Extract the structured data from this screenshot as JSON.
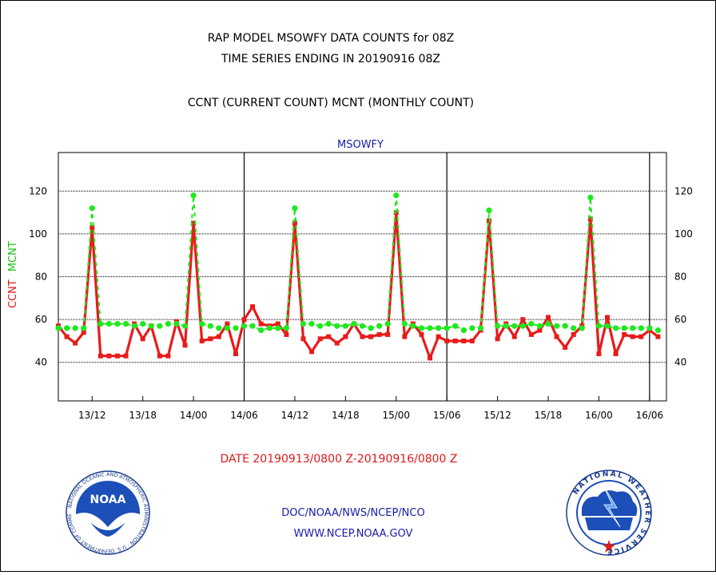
{
  "header": {
    "title_line1": "RAP MODEL MSOWFY DATA COUNTS for 08Z",
    "title_line2": "TIME SERIES ENDING IN 20190916 08Z",
    "subtitle": "CCNT (CURRENT COUNT) MCNT (MONTHLY COUNT)"
  },
  "footer": {
    "date_range": "DATE 20190913/0800 Z-20190916/0800 Z",
    "org_line": "DOC/NOAA/NWS/NCEP/NCO",
    "website": "WWW.NCEP.NOAA.GOV"
  },
  "logos": {
    "noaa_text": "NOAA",
    "noaa_ring": "NATIONAL OCEANIC AND ATMOSPHERIC ADMINISTRATION · U.S. DEPARTMENT OF COMMERCE",
    "nws_ring": "NATIONAL WEATHER SERVICE"
  },
  "colors": {
    "ccnt": "#e81b1b",
    "mcnt": "#1ee81e",
    "blue_text": "#1a1aaa",
    "red_text": "#e01818"
  },
  "chart_data": {
    "type": "line",
    "title": "MSOWFY",
    "ylabel_parts": [
      {
        "text": "CCNT",
        "color": "#e01818"
      },
      {
        "text": "MCNT",
        "color": "#18c018"
      }
    ],
    "x_start": 0,
    "x_end": 72,
    "x_step": 1,
    "xlim": [
      0,
      72
    ],
    "ylim": [
      22,
      138
    ],
    "y_ticks": [
      40,
      60,
      80,
      100,
      120
    ],
    "x_ticks": [
      {
        "pos": 4,
        "label": "13/12"
      },
      {
        "pos": 10,
        "label": "13/18"
      },
      {
        "pos": 16,
        "label": "14/00"
      },
      {
        "pos": 22,
        "label": "14/06"
      },
      {
        "pos": 28,
        "label": "14/12"
      },
      {
        "pos": 34,
        "label": "14/18"
      },
      {
        "pos": 40,
        "label": "15/00"
      },
      {
        "pos": 46,
        "label": "15/06"
      },
      {
        "pos": 52,
        "label": "15/12"
      },
      {
        "pos": 58,
        "label": "15/18"
      },
      {
        "pos": 64,
        "label": "16/00"
      },
      {
        "pos": 70,
        "label": "16/06"
      }
    ],
    "day_boundaries": [
      22,
      46,
      70
    ],
    "grid": true,
    "series": [
      {
        "name": "CCNT",
        "color": "#e81b1b",
        "values": [
          57,
          52,
          49,
          54,
          103,
          43,
          43,
          43,
          43,
          58,
          51,
          57,
          43,
          43,
          59,
          48,
          105,
          50,
          51,
          52,
          58,
          44,
          60,
          66,
          58,
          57,
          58,
          53,
          105,
          51,
          45,
          51,
          52,
          49,
          52,
          58,
          52,
          52,
          53,
          53,
          110,
          52,
          58,
          53,
          42,
          52,
          50,
          50,
          50,
          50,
          55,
          106,
          51,
          58,
          52,
          60,
          53,
          55,
          61,
          52,
          47,
          53,
          57,
          107,
          44,
          61,
          44,
          53,
          52,
          52,
          55,
          52
        ]
      },
      {
        "name": "MCNT",
        "color": "#1ee81e",
        "values": [
          56,
          56,
          56,
          56,
          112,
          58,
          58,
          58,
          58,
          57,
          58,
          57,
          57,
          58,
          58,
          57,
          118,
          58,
          57,
          56,
          56,
          56,
          57,
          57,
          55,
          56,
          56,
          56,
          112,
          58,
          58,
          57,
          58,
          57,
          57,
          58,
          57,
          56,
          57,
          58,
          118,
          58,
          57,
          56,
          56,
          56,
          56,
          57,
          55,
          56,
          56,
          111,
          57,
          57,
          57,
          57,
          58,
          57,
          58,
          57,
          57,
          56,
          56,
          117,
          57,
          57,
          56,
          56,
          56,
          56,
          56,
          55
        ]
      }
    ]
  }
}
